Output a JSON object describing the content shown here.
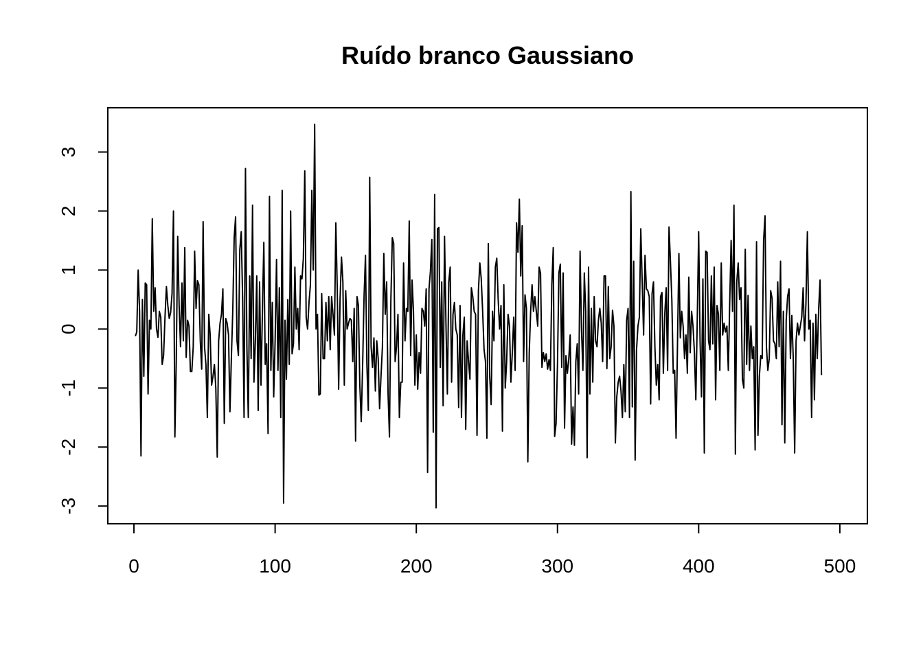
{
  "chart_data": {
    "type": "line",
    "title": "Ruído branco Gaussiano",
    "xlabel": "",
    "ylabel": "",
    "xlim": [
      -18.5,
      519.5
    ],
    "ylim": [
      -3.3,
      3.75
    ],
    "x_ticks": [
      0,
      100,
      200,
      300,
      400,
      500
    ],
    "x_tick_labels": [
      "0",
      "100",
      "200",
      "300",
      "400",
      "500"
    ],
    "y_ticks": [
      -3,
      -2,
      -1,
      0,
      1,
      2,
      3
    ],
    "y_tick_labels": [
      "-3",
      "-2",
      "-1",
      "0",
      "1",
      "2",
      "3"
    ],
    "grid": false,
    "legend": "none",
    "series": [
      {
        "color": "#000000",
        "x_start": 1,
        "values": [
          -0.12,
          -0.05,
          1.0,
          0.3,
          -2.15,
          0.5,
          -0.8,
          0.78,
          0.75,
          -1.1,
          0.15,
          0.0,
          1.87,
          0.3,
          0.7,
          0.0,
          -0.14,
          0.3,
          0.2,
          -0.6,
          -0.45,
          0.2,
          0.72,
          0.4,
          0.18,
          0.28,
          0.6,
          2.0,
          -1.83,
          -0.5,
          1.57,
          0.4,
          -0.3,
          0.78,
          -0.2,
          1.38,
          -0.48,
          0.15,
          0.05,
          -0.72,
          -0.72,
          -0.3,
          1.32,
          0.35,
          0.82,
          0.75,
          -0.2,
          -0.68,
          1.82,
          -0.3,
          -0.6,
          -1.5,
          0.25,
          -0.1,
          -0.95,
          -0.8,
          -0.6,
          -1.0,
          -2.17,
          -0.2,
          0.1,
          0.25,
          0.68,
          -1.6,
          0.18,
          0.1,
          -0.1,
          -1.4,
          -0.5,
          0.3,
          1.55,
          1.9,
          -0.2,
          -0.45,
          1.35,
          1.65,
          0.5,
          -1.5,
          2.72,
          -0.3,
          -1.5,
          0.9,
          -0.5,
          2.1,
          -0.9,
          -0.2,
          0.9,
          -1.38,
          0.8,
          -0.95,
          0.3,
          1.47,
          -0.6,
          -0.25,
          -1.77,
          2.25,
          -0.7,
          0.45,
          -1.15,
          -0.2,
          1.18,
          -0.7,
          0.7,
          -1.5,
          2.35,
          -2.95,
          0.15,
          -0.85,
          0.5,
          -0.6,
          2.0,
          -0.42,
          -0.25,
          1.05,
          0.0,
          0.35,
          -0.35,
          0.9,
          0.85,
          1.2,
          2.68,
          0.2,
          0.0,
          0.45,
          0.75,
          2.35,
          1.0,
          3.47,
          0.0,
          0.25,
          -1.12,
          -1.1,
          0.6,
          -0.5,
          -0.5,
          0.45,
          -0.2,
          0.55,
          -0.35,
          0.55,
          0.25,
          -0.1,
          1.8,
          0.7,
          -1.02,
          0.5,
          1.22,
          0.8,
          -0.95,
          0.65,
          0.0,
          0.1,
          0.18,
          0.15,
          -0.55,
          0.35,
          -1.9,
          0.55,
          0.4,
          -0.95,
          -1.57,
          -0.6,
          0.55,
          1.25,
          -0.6,
          -1.38,
          2.57,
          -0.3,
          -0.65,
          -0.15,
          -1.05,
          -0.2,
          -0.5,
          -1.35,
          -0.8,
          -0.3,
          1.28,
          0.25,
          0.8,
          -1.1,
          -1.83,
          0.5,
          1.55,
          1.45,
          -0.55,
          -0.3,
          0.25,
          -1.5,
          -0.9,
          -0.9,
          1.12,
          -0.2,
          0.35,
          0.3,
          1.83,
          -0.45,
          0.83,
          0.3,
          -0.95,
          -0.1,
          -1.02,
          -0.4,
          -0.75,
          0.35,
          0.3,
          0.05,
          0.68,
          -2.43,
          0.68,
          0.98,
          1.52,
          -1.75,
          2.28,
          -3.03,
          1.7,
          1.72,
          -0.65,
          0.8,
          -1.3,
          1.57,
          0.1,
          -1.1,
          0.8,
          1.05,
          -0.9,
          0.25,
          0.45,
          0.0,
          -0.1,
          -1.33,
          0.4,
          -1.5,
          -0.1,
          0.2,
          -1.7,
          -0.2,
          -0.55,
          -0.85,
          0.7,
          0.55,
          0.3,
          0.25,
          -1.8,
          0.65,
          1.12,
          0.85,
          0.3,
          -0.35,
          -0.55,
          -1.85,
          1.45,
          -0.8,
          -1.28,
          0.3,
          -0.2,
          1.05,
          1.2,
          0.5,
          0.0,
          0.4,
          -1.73,
          0.75,
          -1.0,
          -0.55,
          0.25,
          0.05,
          -0.9,
          -0.4,
          0.2,
          -0.7,
          1.8,
          1.3,
          2.2,
          0.9,
          1.75,
          -0.55,
          0.58,
          0.35,
          -2.25,
          -0.4,
          0.3,
          0.75,
          0.3,
          0.55,
          0.3,
          0.05,
          1.05,
          0.95,
          -0.65,
          -0.4,
          -0.55,
          -0.42,
          -0.68,
          -0.52,
          -0.7,
          0.75,
          1.38,
          -1.82,
          -1.6,
          -0.6,
          0.95,
          1.1,
          -0.65,
          0.95,
          -1.68,
          -0.45,
          -0.75,
          -0.5,
          -0.1,
          -1.95,
          -1.32,
          -1.97,
          -0.55,
          -0.25,
          -1.1,
          1.32,
          0.0,
          -0.7,
          0.95,
          0.3,
          -2.18,
          1.05,
          -1.1,
          0.35,
          -0.9,
          0.55,
          -0.2,
          -0.3,
          0.15,
          0.35,
          0.1,
          -0.55,
          0.9,
          0.9,
          -0.67,
          0.72,
          -0.5,
          -0.3,
          0.32,
          0.05,
          -1.93,
          -1.15,
          -0.9,
          -0.8,
          -1.05,
          -1.5,
          -0.6,
          -1.4,
          0.15,
          0.35,
          -1.5,
          2.33,
          -1.32,
          1.15,
          -2.22,
          -0.35,
          0.05,
          0.2,
          1.7,
          0.8,
          -0.1,
          1.25,
          0.68,
          0.65,
          0.55,
          -1.27,
          0.6,
          0.8,
          -0.3,
          -0.95,
          -0.6,
          -1.2,
          0.55,
          0.62,
          -0.75,
          0.25,
          0.7,
          -0.7,
          1.73,
          1.15,
          0.5,
          -0.75,
          -0.7,
          -1.85,
          -0.25,
          1.28,
          -0.15,
          0.3,
          0.05,
          -0.5,
          -0.1,
          -0.75,
          0.88,
          -0.4,
          0.3,
          0.05,
          -0.4,
          -1.2,
          0.15,
          1.65,
          -0.2,
          -1.15,
          0.85,
          -2.1,
          1.32,
          1.3,
          -0.2,
          -0.35,
          0.9,
          -0.25,
          1.05,
          -1.2,
          0.4,
          0.25,
          -0.7,
          1.12,
          -0.1,
          0.1,
          -0.05,
          0.05,
          -0.7,
          0.45,
          1.5,
          0.3,
          2.1,
          -2.12,
          0.8,
          1.12,
          0.5,
          0.7,
          -0.85,
          -1.0,
          1.35,
          -0.6,
          0.57,
          -0.7,
          0.05,
          -0.5,
          -0.3,
          -2.05,
          1.48,
          -1.8,
          -0.8,
          -0.45,
          -0.5,
          1.5,
          1.92,
          -0.3,
          -0.7,
          -0.5,
          0.65,
          0.52,
          -0.2,
          -0.25,
          -0.5,
          0.8,
          -0.3,
          1.15,
          -1.62,
          0.3,
          -1.93,
          0.15,
          0.55,
          0.68,
          -0.5,
          0.23,
          -0.5,
          -2.1,
          -0.2,
          0.1,
          -0.1,
          0.05,
          0.2,
          0.7,
          -0.2,
          0.45,
          1.65,
          0.0,
          0.15,
          -1.5,
          0.1,
          -1.2,
          0.25,
          -0.5,
          0.35,
          0.83,
          -0.78
        ]
      }
    ]
  }
}
